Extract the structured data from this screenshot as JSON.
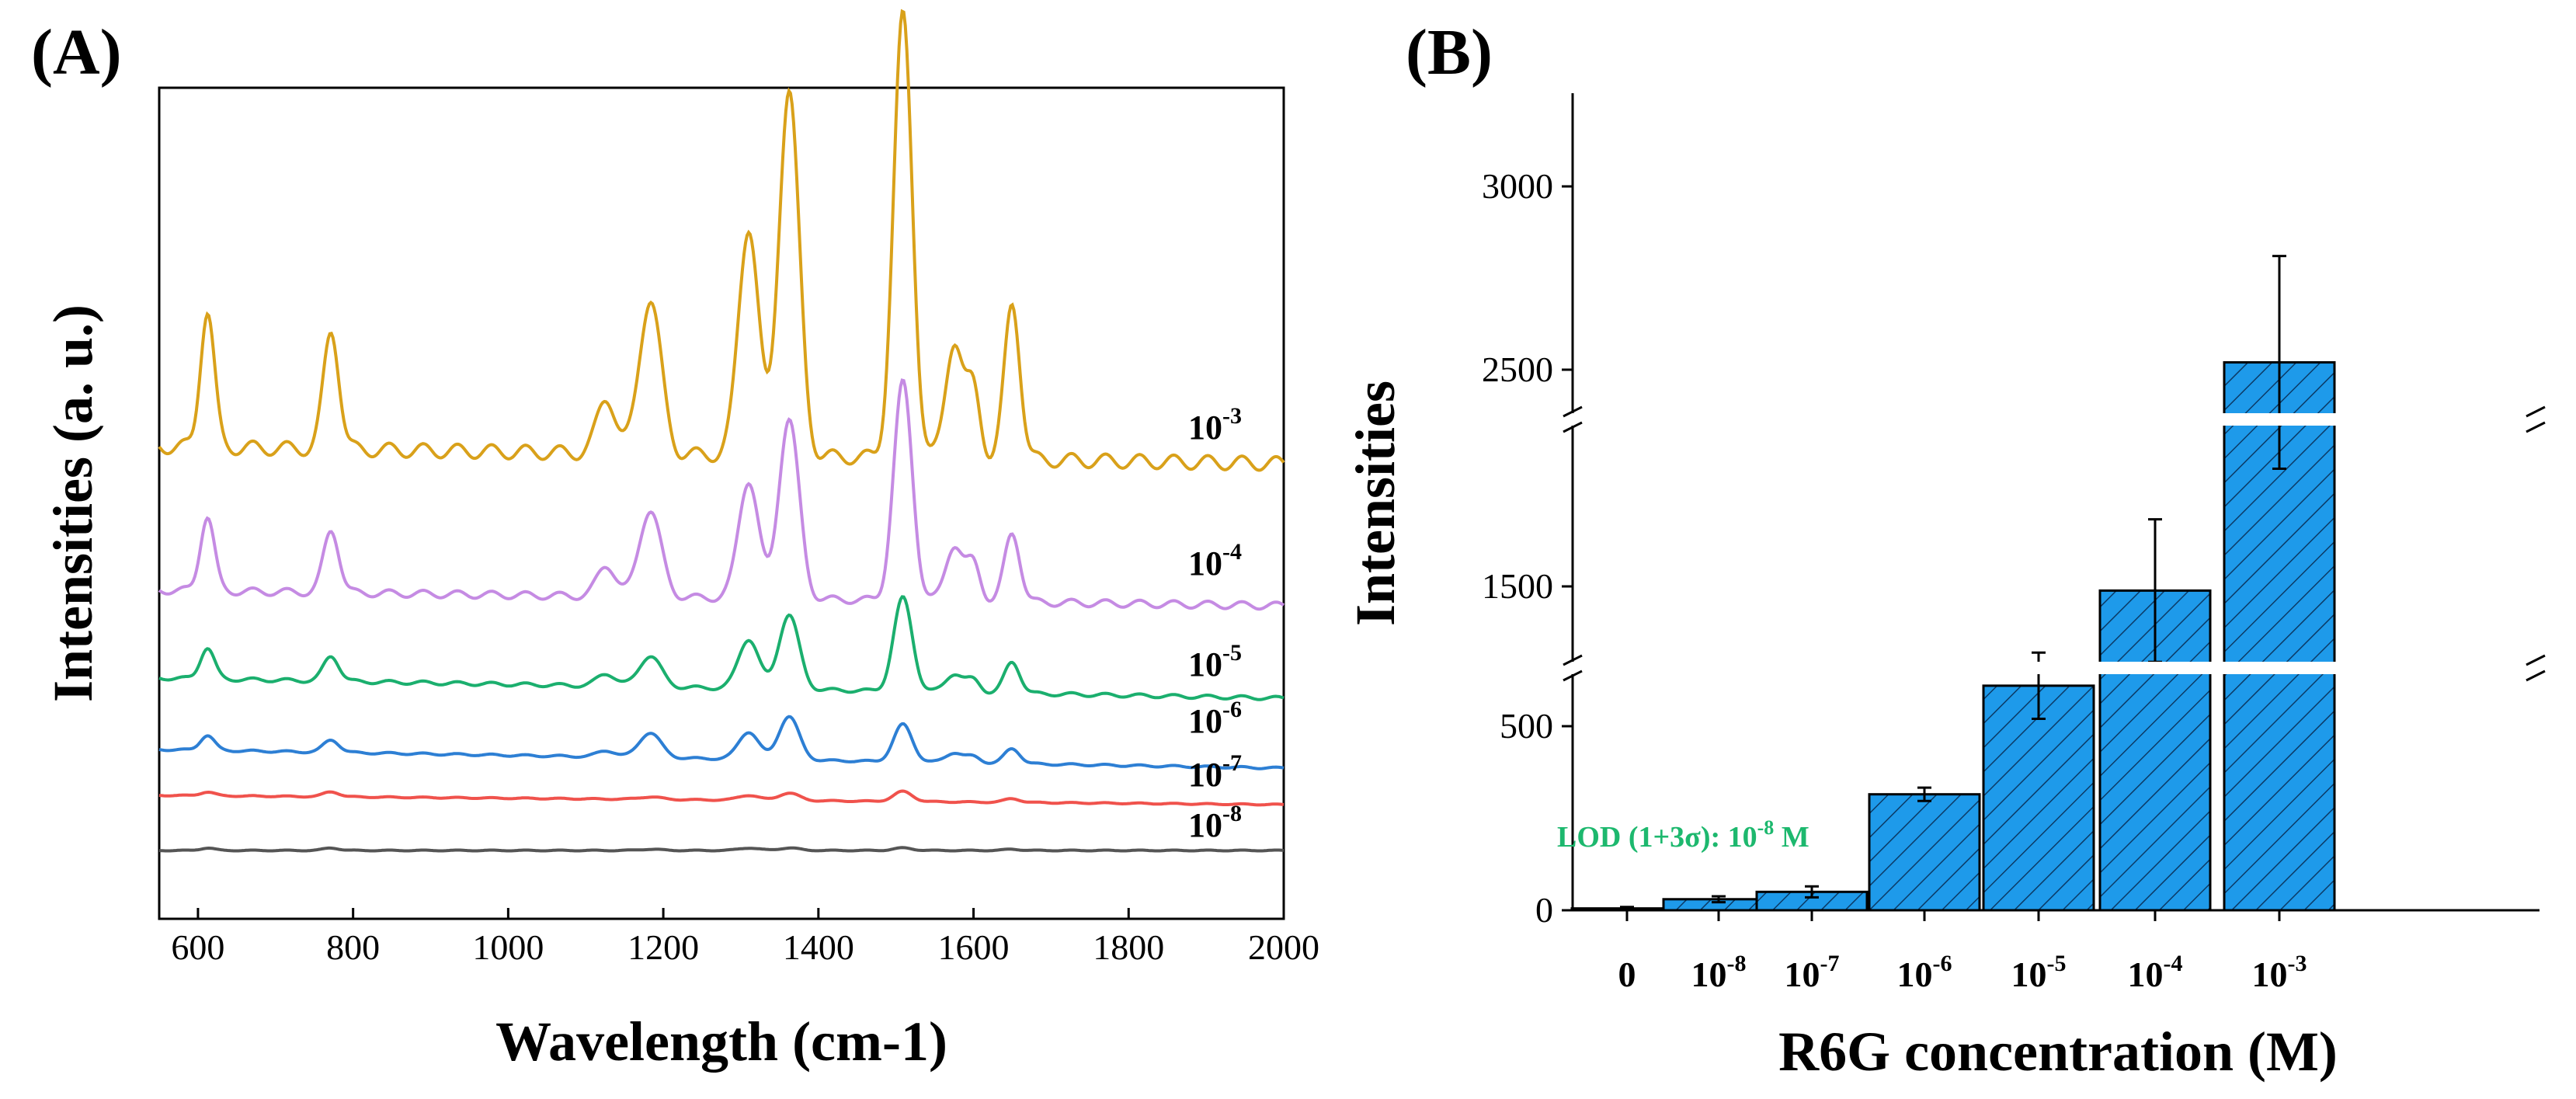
{
  "chart_data": [
    {
      "type": "line",
      "panel_label": "(A)",
      "xlabel": "Wavelength (cm-1)",
      "ylabel": "Intensities (a. u.)",
      "xlim": [
        550,
        2000
      ],
      "xticks": [
        600,
        800,
        1000,
        1200,
        1400,
        1600,
        1800,
        2000
      ],
      "peaks_cm1": [
        612,
        772,
        1127,
        1183,
        1310,
        1362,
        1509,
        1575,
        1600,
        1650
      ],
      "series": [
        {
          "name": "10-3",
          "label_base": "10",
          "label_exp": "-3",
          "color": "#D9A11A",
          "baseline": 1.0,
          "peak_heights": [
            1.1,
            0.95,
            0.45,
            1.25,
            1.85,
            2.95,
            3.55,
            0.95,
            0.55,
            1.25
          ]
        },
        {
          "name": "10-4",
          "label_base": "10",
          "label_exp": "-4",
          "color": "#C58BE3",
          "baseline": 0.9,
          "peak_heights": [
            0.6,
            0.5,
            0.25,
            0.7,
            0.95,
            1.45,
            1.75,
            0.45,
            0.3,
            0.55
          ]
        },
        {
          "name": "10-5",
          "label_base": "10",
          "label_exp": "-5",
          "color": "#1BAF6E",
          "baseline": 0.95,
          "peak_heights": [
            0.25,
            0.2,
            0.1,
            0.25,
            0.4,
            0.6,
            0.75,
            0.15,
            0.1,
            0.25
          ]
        },
        {
          "name": "10-6",
          "label_base": "10",
          "label_exp": "-6",
          "color": "#2D7FD4",
          "baseline": 0.9,
          "peak_heights": [
            0.12,
            0.1,
            0.05,
            0.2,
            0.22,
            0.35,
            0.3,
            0.08,
            0.05,
            0.12
          ]
        },
        {
          "name": "10-7",
          "label_base": "10",
          "label_exp": "-7",
          "color": "#F0524C",
          "baseline": 0.85,
          "peak_heights": [
            0.03,
            0.04,
            0.0,
            0.02,
            0.04,
            0.06,
            0.08,
            0.0,
            0.0,
            0.03
          ]
        },
        {
          "name": "10-8",
          "label_base": "10",
          "label_exp": "-8",
          "color": "#555555",
          "baseline": 0.8,
          "peak_heights": [
            0.02,
            0.02,
            0.0,
            0.01,
            0.02,
            0.02,
            0.02,
            0.0,
            0.0,
            0.01
          ]
        }
      ]
    },
    {
      "type": "bar",
      "panel_label": "(B)",
      "xlabel": "R6G concentration (M)",
      "ylabel": "Intensities",
      "bar_color": "#1E9AEA",
      "categories": [
        {
          "base": "0",
          "exp": ""
        },
        {
          "base": "10",
          "exp": "-8"
        },
        {
          "base": "10",
          "exp": "-7"
        },
        {
          "base": "10",
          "exp": "-6"
        },
        {
          "base": "10",
          "exp": "-5"
        },
        {
          "base": "10",
          "exp": "-4"
        },
        {
          "base": "10",
          "exp": "-3"
        }
      ],
      "values": [
        5,
        30,
        50,
        315,
        610,
        1490,
        2520
      ],
      "errors": [
        4,
        8,
        15,
        18,
        90,
        170,
        290
      ],
      "yticks": [
        "0",
        "500",
        "1500",
        "2500",
        "3000"
      ],
      "axis_breaks": [
        [
          700,
          1300
        ],
        [
          1700,
          2300
        ]
      ],
      "annotation": {
        "text": "LOD (1+3σ): 10",
        "exp": "-8",
        "suffix": " M",
        "color": "#1DB86E"
      }
    }
  ]
}
